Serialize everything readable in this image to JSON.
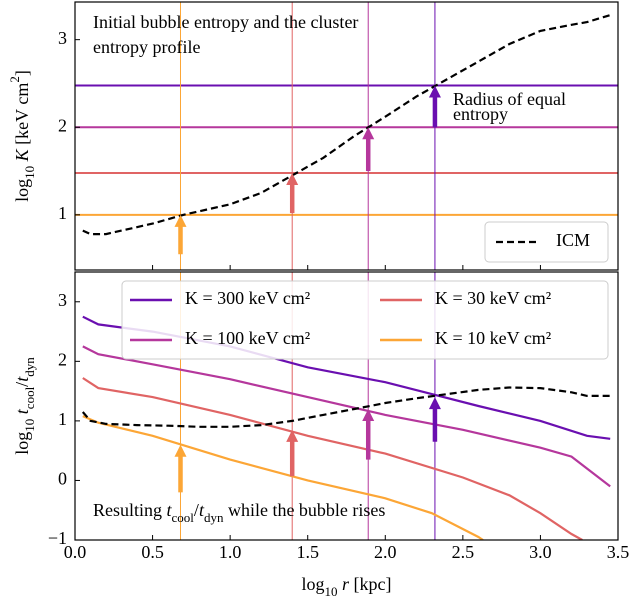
{
  "chart_data": [
    {
      "type": "line",
      "ylabel": [
        "log",
        {
          "sub": "10"
        },
        " ",
        {
          "i": "K"
        },
        " [keV cm",
        {
          "sup": "2"
        },
        "]"
      ],
      "annotation": [
        "Initial bubble entropy and the cluster",
        "entropy profile"
      ],
      "annotation2": [
        "Radius of equal",
        "entropy"
      ],
      "xlim": [
        0,
        3.5
      ],
      "ylim": [
        0.37,
        3.43
      ],
      "yticks": [
        1,
        2,
        3
      ],
      "xticks": [
        0,
        0.5,
        1,
        1.5,
        2,
        2.5,
        3,
        3.5
      ],
      "legend": "lower right",
      "series": [
        {
          "name": "ICM",
          "color": "#000000",
          "linestyle": "dashed",
          "x": [
            0.05,
            0.1,
            0.2,
            0.3,
            0.5,
            0.7,
            1.0,
            1.2,
            1.4,
            1.6,
            1.8,
            2.0,
            2.2,
            2.4,
            2.6,
            2.8,
            3.0,
            3.2,
            3.3,
            3.45
          ],
          "values": [
            0.82,
            0.78,
            0.78,
            0.82,
            0.9,
            1.0,
            1.12,
            1.25,
            1.45,
            1.65,
            1.9,
            2.12,
            2.35,
            2.55,
            2.75,
            2.95,
            3.1,
            3.17,
            3.2,
            3.28
          ]
        }
      ],
      "hlines": [
        {
          "y": 2.477,
          "color": "#6a0fb0"
        },
        {
          "y": 2.0,
          "color": "#b5379c"
        },
        {
          "y": 1.477,
          "color": "#e06464"
        },
        {
          "y": 1.0,
          "color": "#fca636"
        }
      ],
      "vlines": [
        {
          "x": 0.68,
          "color": "#fca636"
        },
        {
          "x": 1.4,
          "color": "#e06464"
        },
        {
          "x": 1.89,
          "color": "#b5379c"
        },
        {
          "x": 2.32,
          "color": "#6a0fb0"
        }
      ],
      "arrows": [
        {
          "x": 0.68,
          "from": 0.55,
          "to": 1.0,
          "color": "#fca636"
        },
        {
          "x": 1.4,
          "from": 1.02,
          "to": 1.477,
          "color": "#e06464"
        },
        {
          "x": 1.89,
          "from": 1.5,
          "to": 2.0,
          "color": "#b5379c"
        },
        {
          "x": 2.32,
          "from": 2.0,
          "to": 2.477,
          "color": "#6a0fb0"
        }
      ]
    },
    {
      "type": "line",
      "ylabel": [
        "log",
        {
          "sub": "10"
        },
        " ",
        {
          "i": "t"
        },
        {
          "sub": "cool"
        },
        "/",
        {
          "i": "t"
        },
        {
          "sub": "dyn"
        }
      ],
      "xlabel": [
        "log",
        {
          "sub": "10"
        },
        " ",
        {
          "i": "r"
        },
        " [kpc]"
      ],
      "annotation": [
        "Resulting ",
        {
          "i": "t"
        },
        {
          "sub": "cool"
        },
        "/",
        {
          "i": "t"
        },
        {
          "sub": "dyn"
        },
        " while the bubble rises"
      ],
      "xlim": [
        0,
        3.5
      ],
      "ylim": [
        -1,
        3.5
      ],
      "yticks": [
        {
          "value": -1,
          "label": "−1"
        },
        0,
        1,
        2,
        3
      ],
      "xticks": [
        {
          "value": 0,
          "label": "0.0"
        },
        {
          "value": 0.5,
          "label": "0.5"
        },
        {
          "value": 1,
          "label": "1.0"
        },
        {
          "value": 1.5,
          "label": "1.5"
        },
        {
          "value": 2,
          "label": "2.0"
        },
        {
          "value": 2.5,
          "label": "2.5"
        },
        {
          "value": 3,
          "label": "3.0"
        },
        {
          "value": 3.5,
          "label": "3.5"
        }
      ],
      "legend": "upper right",
      "series": [
        {
          "name": "K = 300 keV cm²",
          "color": "#6a0fb0",
          "x": [
            0.05,
            0.15,
            0.5,
            1.0,
            1.5,
            2.0,
            2.3,
            2.6,
            3.0,
            3.3,
            3.45
          ],
          "values": [
            2.75,
            2.62,
            2.5,
            2.25,
            1.9,
            1.65,
            1.45,
            1.25,
            1.0,
            0.75,
            0.7
          ]
        },
        {
          "name": "K = 100 keV cm²",
          "color": "#b5379c",
          "x": [
            0.05,
            0.15,
            0.5,
            1.0,
            1.5,
            2.0,
            2.5,
            3.0,
            3.2,
            3.45
          ],
          "values": [
            2.25,
            2.12,
            1.95,
            1.7,
            1.4,
            1.1,
            0.85,
            0.55,
            0.4,
            -0.1
          ]
        },
        {
          "name": "K = 30 keV cm²",
          "color": "#e06464",
          "x": [
            0.05,
            0.15,
            0.5,
            1.0,
            1.5,
            2.0,
            2.5,
            2.8,
            3.0,
            3.2,
            3.27
          ],
          "values": [
            1.72,
            1.55,
            1.4,
            1.1,
            0.75,
            0.45,
            0.05,
            -0.25,
            -0.55,
            -0.9,
            -1
          ]
        },
        {
          "name": "K = 10 keV cm²",
          "color": "#fca636",
          "x": [
            0.05,
            0.15,
            0.5,
            1.0,
            1.5,
            2.0,
            2.3,
            2.6,
            2.63
          ],
          "values": [
            1.08,
            0.97,
            0.75,
            0.35,
            0.0,
            -0.3,
            -0.55,
            -0.95,
            -1
          ]
        },
        {
          "name": "ICM",
          "color": "#000000",
          "linestyle": "dashed",
          "in_legend": false,
          "x": [
            0.05,
            0.1,
            0.2,
            0.4,
            0.6,
            0.8,
            1.0,
            1.2,
            1.4,
            1.6,
            1.8,
            2.0,
            2.2,
            2.4,
            2.6,
            2.8,
            3.0,
            3.2,
            3.3,
            3.45
          ],
          "values": [
            1.15,
            1.0,
            0.95,
            0.93,
            0.92,
            0.9,
            0.9,
            0.93,
            1.0,
            1.1,
            1.2,
            1.3,
            1.38,
            1.45,
            1.52,
            1.56,
            1.55,
            1.48,
            1.42,
            1.42
          ]
        }
      ],
      "vlines": [
        {
          "x": 0.68,
          "color": "#fca636"
        },
        {
          "x": 1.4,
          "color": "#e06464"
        },
        {
          "x": 1.89,
          "color": "#b5379c"
        },
        {
          "x": 2.32,
          "color": "#6a0fb0"
        }
      ],
      "arrows": [
        {
          "x": 0.68,
          "from": -0.2,
          "to": 0.6,
          "color": "#fca636"
        },
        {
          "x": 1.4,
          "from": 0.07,
          "to": 0.85,
          "color": "#e06464"
        },
        {
          "x": 1.89,
          "from": 0.35,
          "to": 1.2,
          "color": "#b5379c"
        },
        {
          "x": 2.32,
          "from": 0.65,
          "to": 1.4,
          "color": "#6a0fb0"
        }
      ]
    }
  ]
}
